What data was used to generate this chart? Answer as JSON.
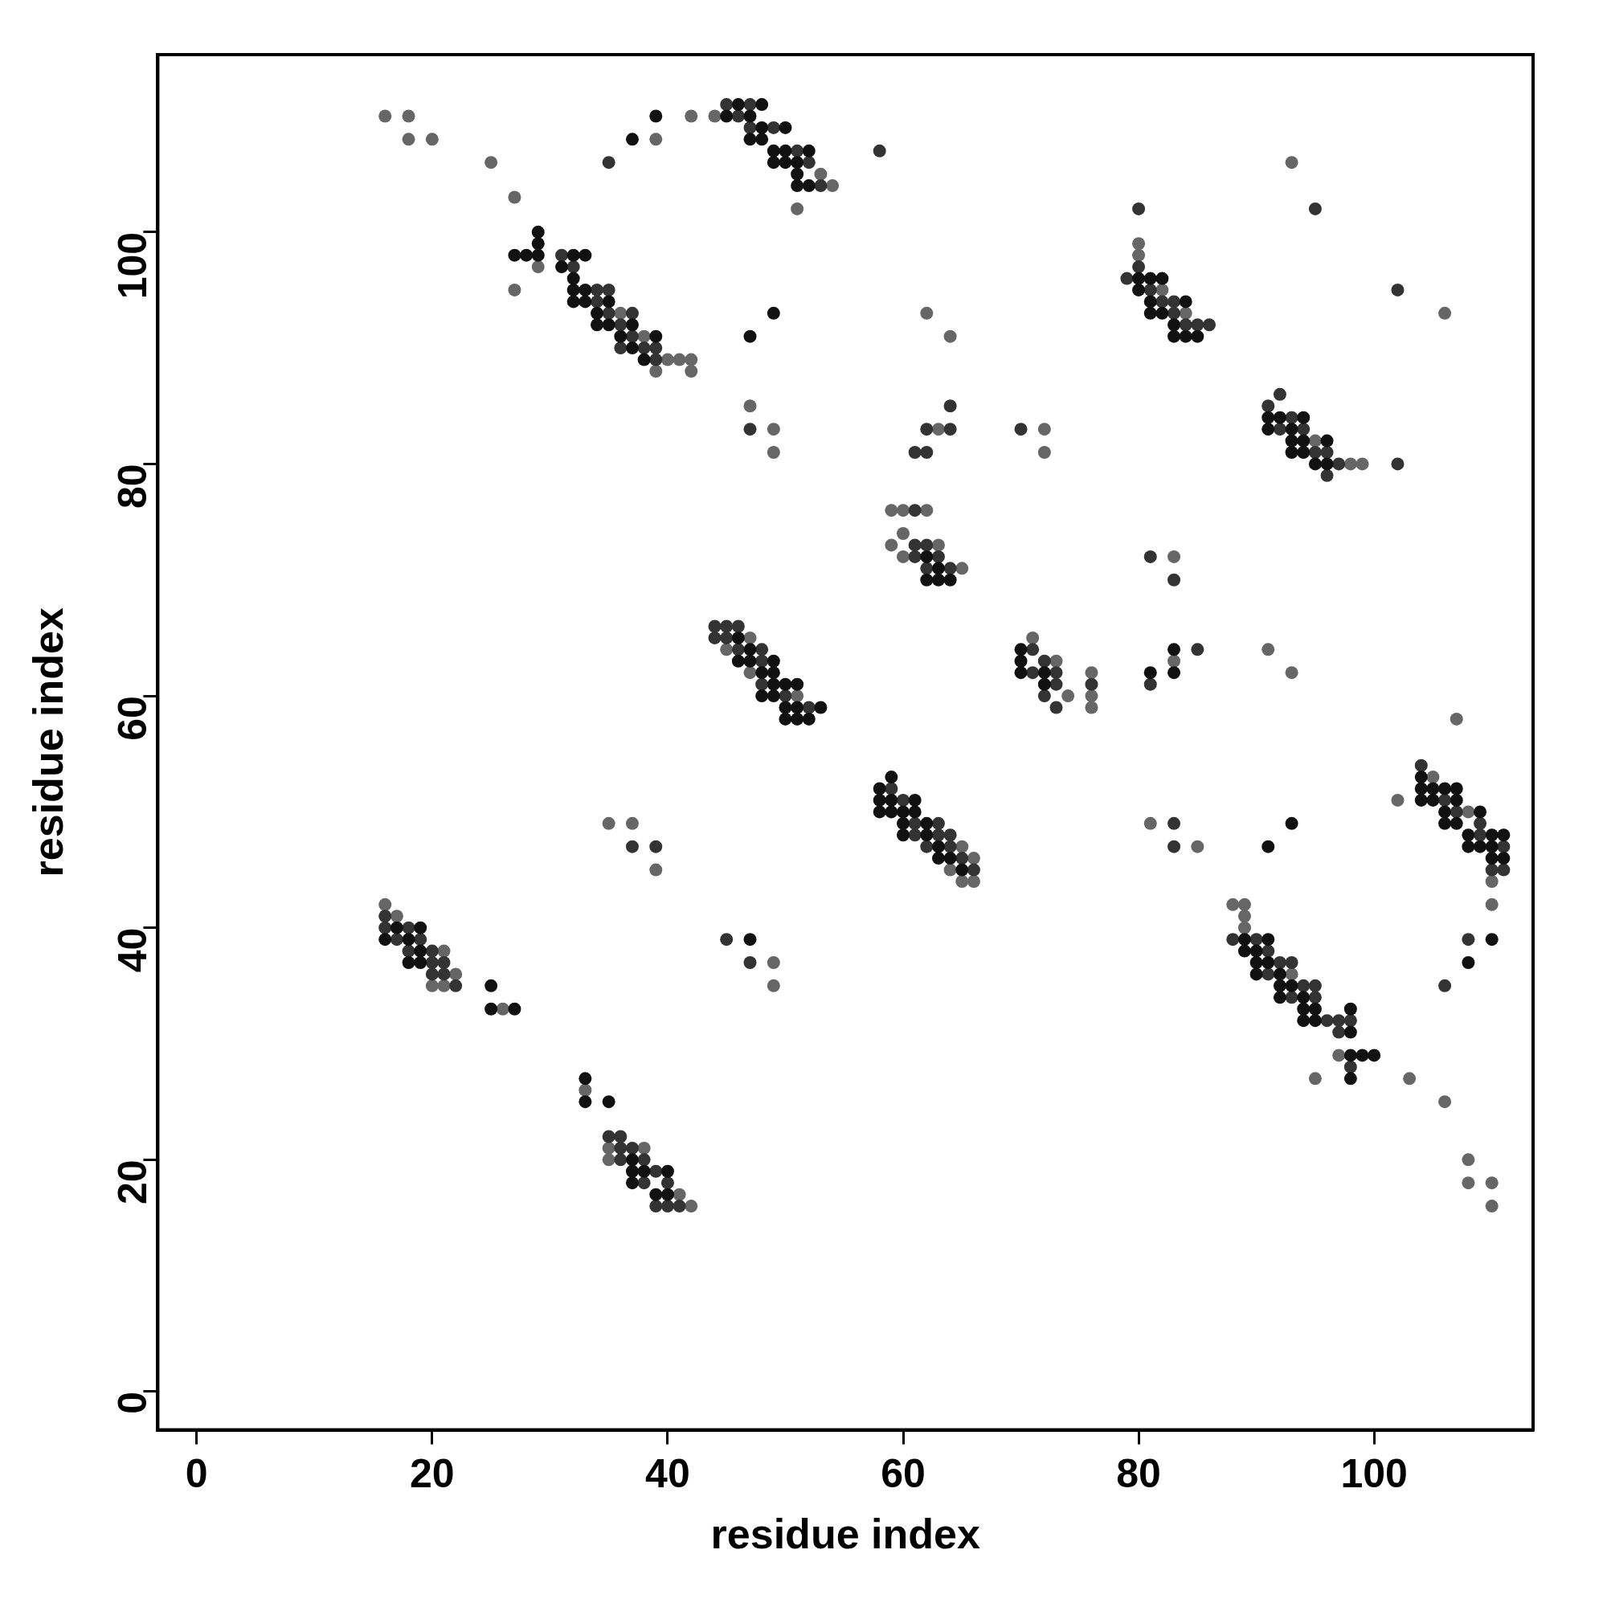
{
  "chart_data": {
    "type": "scatter",
    "xlabel": "residue index",
    "ylabel": "residue index",
    "xlim": [
      -3.3,
      113.5
    ],
    "ylim": [
      -3.3,
      115.3
    ],
    "xticks": [
      0,
      20,
      40,
      60,
      80,
      100
    ],
    "yticks": [
      0,
      20,
      40,
      60,
      80,
      100
    ],
    "grid": false,
    "legend": false,
    "marker": "circle",
    "series": [
      {
        "color": "#111111",
        "x": [
          37,
          39,
          45,
          46,
          47,
          48,
          48,
          47,
          48,
          50,
          49,
          50,
          49,
          50,
          52,
          51,
          51,
          51,
          52,
          27,
          28,
          29,
          29,
          29,
          32,
          33,
          31,
          32,
          32,
          33,
          32,
          33,
          35,
          34,
          34,
          35,
          37,
          36,
          39,
          37,
          38,
          47,
          49,
          62,
          63,
          62,
          63,
          64,
          80,
          81,
          82,
          80,
          81,
          84,
          81,
          82,
          83,
          83,
          84,
          85,
          91,
          92,
          94,
          91,
          93,
          93,
          94,
          96,
          93,
          94,
          95,
          96,
          46,
          47,
          46,
          47,
          49,
          48,
          49,
          49,
          50,
          51,
          48,
          49,
          50,
          51,
          53,
          50,
          51,
          52,
          70,
          70,
          70,
          72,
          72,
          81,
          83,
          83,
          58,
          59,
          58,
          58,
          59,
          59,
          61,
          60,
          61,
          60,
          62,
          60,
          62,
          63,
          63,
          64,
          65,
          91,
          93,
          104,
          104,
          105,
          106,
          107,
          104,
          105,
          107,
          106,
          109,
          106,
          107,
          108,
          110,
          111,
          108,
          109,
          110,
          110,
          111,
          110,
          108,
          17,
          19,
          16,
          18,
          19,
          18,
          19,
          25,
          25,
          27,
          47,
          89,
          91,
          89,
          90,
          90,
          91,
          90,
          92,
          92,
          93,
          92,
          94,
          94,
          95,
          94,
          95,
          98,
          98,
          98,
          99,
          100,
          98,
          33,
          33,
          35,
          37,
          37,
          38,
          40,
          37,
          39,
          40
        ],
        "values": [
          108,
          110,
          110,
          111,
          110,
          111,
          109,
          108,
          108,
          109,
          107,
          107,
          106,
          106,
          107,
          106,
          105,
          104,
          104,
          98,
          98,
          100,
          99,
          98,
          98,
          98,
          97,
          96,
          95,
          95,
          94,
          94,
          94,
          93,
          92,
          92,
          92,
          91,
          91,
          90,
          89,
          91,
          93,
          72,
          71,
          70,
          70,
          70,
          96,
          96,
          96,
          95,
          94,
          94,
          93,
          93,
          92,
          91,
          91,
          91,
          84,
          84,
          84,
          83,
          83,
          82,
          82,
          82,
          81,
          81,
          80,
          80,
          65,
          64,
          63,
          63,
          63,
          62,
          62,
          61,
          61,
          61,
          60,
          60,
          59,
          59,
          59,
          58,
          58,
          58,
          64,
          63,
          62,
          62,
          61,
          62,
          64,
          62,
          52,
          53,
          51,
          50,
          51,
          50,
          51,
          50,
          50,
          49,
          49,
          48,
          48,
          47,
          46,
          46,
          45,
          47,
          49,
          53,
          52,
          52,
          52,
          52,
          51,
          51,
          51,
          50,
          50,
          49,
          49,
          48,
          48,
          48,
          47,
          47,
          47,
          46,
          46,
          39,
          37,
          40,
          40,
          39,
          39,
          38,
          37,
          37,
          35,
          33,
          33,
          39,
          39,
          39,
          38,
          38,
          37,
          37,
          36,
          36,
          35,
          35,
          34,
          34,
          33,
          33,
          32,
          32,
          33,
          31,
          29,
          29,
          29,
          27,
          27,
          25,
          25,
          20,
          19,
          19,
          19,
          18,
          17,
          17
        ]
      },
      {
        "color": "#333333",
        "x": [
          35,
          45,
          47,
          46,
          47,
          49,
          51,
          52,
          53,
          58,
          31,
          32,
          34,
          35,
          34,
          35,
          37,
          36,
          37,
          36,
          38,
          39,
          39,
          47,
          64,
          62,
          64,
          61,
          62,
          61,
          61,
          62,
          61,
          63,
          62,
          64,
          70,
          80,
          80,
          79,
          81,
          82,
          83,
          83,
          84,
          85,
          86,
          95,
          102,
          91,
          92,
          93,
          92,
          94,
          95,
          96,
          97,
          96,
          102,
          81,
          83,
          44,
          45,
          46,
          44,
          45,
          46,
          48,
          48,
          48,
          50,
          52,
          71,
          72,
          71,
          73,
          73,
          72,
          73,
          76,
          81,
          85,
          59,
          60,
          61,
          61,
          63,
          63,
          64,
          62,
          64,
          65,
          66,
          83,
          83,
          104,
          106,
          107,
          109,
          109,
          111,
          110,
          111,
          108,
          106,
          16,
          16,
          18,
          17,
          19,
          18,
          20,
          20,
          21,
          20,
          21,
          22,
          37,
          39,
          45,
          47,
          88,
          90,
          91,
          92,
          93,
          91,
          94,
          95,
          93,
          95,
          96,
          97,
          98,
          97,
          98,
          35,
          36,
          36,
          37,
          36,
          38,
          39,
          38,
          40,
          39,
          40,
          41
        ],
        "values": [
          106,
          111,
          111,
          110,
          109,
          109,
          107,
          106,
          104,
          107,
          98,
          97,
          95,
          95,
          94,
          93,
          93,
          92,
          91,
          90,
          90,
          90,
          89,
          83,
          85,
          83,
          83,
          81,
          81,
          76,
          73,
          73,
          72,
          72,
          71,
          71,
          83,
          102,
          97,
          96,
          95,
          94,
          94,
          93,
          92,
          92,
          92,
          102,
          95,
          85,
          86,
          84,
          83,
          83,
          81,
          81,
          80,
          79,
          80,
          72,
          70,
          66,
          66,
          66,
          65,
          65,
          64,
          64,
          63,
          61,
          60,
          59,
          64,
          63,
          62,
          62,
          61,
          60,
          59,
          61,
          61,
          64,
          52,
          51,
          49,
          48,
          49,
          48,
          48,
          47,
          47,
          46,
          45,
          49,
          47,
          54,
          51,
          50,
          49,
          48,
          47,
          45,
          45,
          39,
          35,
          41,
          40,
          40,
          39,
          39,
          38,
          38,
          37,
          37,
          36,
          36,
          35,
          47,
          47,
          39,
          37,
          39,
          39,
          38,
          37,
          37,
          36,
          35,
          35,
          34,
          34,
          32,
          32,
          32,
          31,
          28,
          22,
          22,
          21,
          21,
          20,
          20,
          19,
          18,
          18,
          16,
          16,
          16
        ]
      },
      {
        "color": "#666666",
        "x": [
          16,
          18,
          18,
          20,
          25,
          27,
          39,
          42,
          44,
          53,
          54,
          51,
          29,
          27,
          36,
          38,
          40,
          41,
          42,
          39,
          42,
          47,
          49,
          49,
          62,
          64,
          63,
          59,
          60,
          62,
          59,
          60,
          60,
          63,
          65,
          72,
          72,
          80,
          80,
          82,
          84,
          93,
          106,
          95,
          98,
          99,
          83,
          47,
          45,
          47,
          51,
          71,
          73,
          74,
          76,
          76,
          76,
          83,
          91,
          93,
          107,
          65,
          66,
          64,
          65,
          66,
          81,
          85,
          102,
          105,
          108,
          110,
          110,
          16,
          17,
          21,
          22,
          20,
          21,
          26,
          35,
          37,
          39,
          49,
          49,
          88,
          89,
          89,
          89,
          93,
          97,
          95,
          103,
          106,
          108,
          108,
          110,
          110,
          33,
          35,
          38,
          35,
          41,
          42
        ],
        "values": [
          110,
          110,
          108,
          108,
          106,
          103,
          108,
          110,
          110,
          105,
          104,
          102,
          97,
          95,
          93,
          91,
          89,
          89,
          89,
          88,
          88,
          85,
          83,
          81,
          93,
          91,
          83,
          76,
          76,
          76,
          73,
          74,
          72,
          73,
          71,
          83,
          81,
          99,
          98,
          95,
          93,
          106,
          93,
          82,
          80,
          80,
          72,
          65,
          64,
          62,
          60,
          65,
          63,
          60,
          62,
          60,
          59,
          63,
          64,
          62,
          58,
          47,
          46,
          45,
          44,
          44,
          49,
          47,
          51,
          53,
          50,
          44,
          42,
          42,
          41,
          38,
          36,
          35,
          35,
          33,
          49,
          49,
          45,
          37,
          35,
          42,
          42,
          41,
          40,
          36,
          29,
          27,
          27,
          25,
          20,
          18,
          18,
          16,
          26,
          21,
          21,
          20,
          17,
          16
        ]
      }
    ]
  }
}
